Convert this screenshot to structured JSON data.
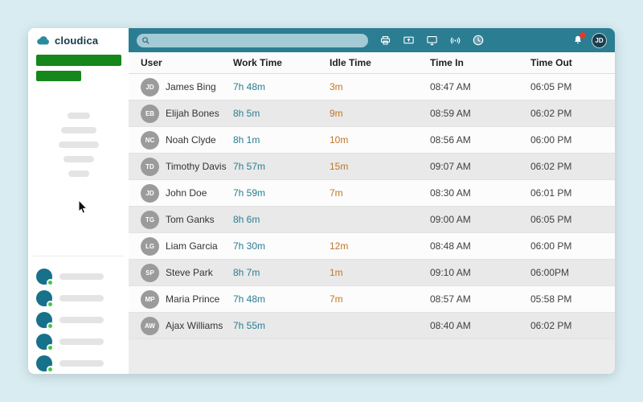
{
  "app": {
    "brand": "cloudica"
  },
  "header": {
    "search_value": "",
    "avatar_initials": "JD",
    "notification_badge": ""
  },
  "colors": {
    "topbar": "#2b7d92",
    "accent_teal": "#2a7d91",
    "idle_orange": "#c0762a",
    "green_bar": "#16871a",
    "online_green": "#43c743",
    "badge_red": "#e03a2f"
  },
  "table": {
    "columns": [
      "User",
      "Work Time",
      "Idle Time",
      "Time In",
      "Time Out"
    ],
    "rows": [
      {
        "initials": "JD",
        "name": "James Bing",
        "work_time": "7h 48m",
        "idle_time": "3m",
        "time_in": "08:47 AM",
        "time_out": "06:05 PM"
      },
      {
        "initials": "EB",
        "name": "Elijah Bones",
        "work_time": "8h 5m",
        "idle_time": "9m",
        "time_in": "08:59 AM",
        "time_out": "06:02 PM"
      },
      {
        "initials": "NC",
        "name": "Noah Clyde",
        "work_time": "8h 1m",
        "idle_time": "10m",
        "time_in": "08:56 AM",
        "time_out": "06:00 PM"
      },
      {
        "initials": "TD",
        "name": "Timothy Davis",
        "work_time": "7h 57m",
        "idle_time": "15m",
        "time_in": "09:07 AM",
        "time_out": "06:02 PM"
      },
      {
        "initials": "JD",
        "name": "John Doe",
        "work_time": "7h 59m",
        "idle_time": "7m",
        "time_in": "08:30 AM",
        "time_out": "06:01 PM"
      },
      {
        "initials": "TG",
        "name": "Tom Ganks",
        "work_time": "8h 6m",
        "idle_time": "",
        "time_in": "09:00 AM",
        "time_out": "06:05 PM"
      },
      {
        "initials": "LG",
        "name": "Liam Garcia",
        "work_time": "7h 30m",
        "idle_time": "12m",
        "time_in": "08:48 AM",
        "time_out": "06:00 PM"
      },
      {
        "initials": "SP",
        "name": "Steve Park",
        "work_time": "8h 7m",
        "idle_time": "1m",
        "time_in": "09:10 AM",
        "time_out": "06:00PM"
      },
      {
        "initials": "MP",
        "name": "Maria Prince",
        "work_time": "7h 48m",
        "idle_time": "7m",
        "time_in": "08:57 AM",
        "time_out": "05:58 PM"
      },
      {
        "initials": "AW",
        "name": "Ajax Williams",
        "work_time": "7h 55m",
        "idle_time": "",
        "time_in": "08:40 AM",
        "time_out": "06:02 PM"
      }
    ]
  },
  "sidebar": {
    "contact_count": 5
  }
}
